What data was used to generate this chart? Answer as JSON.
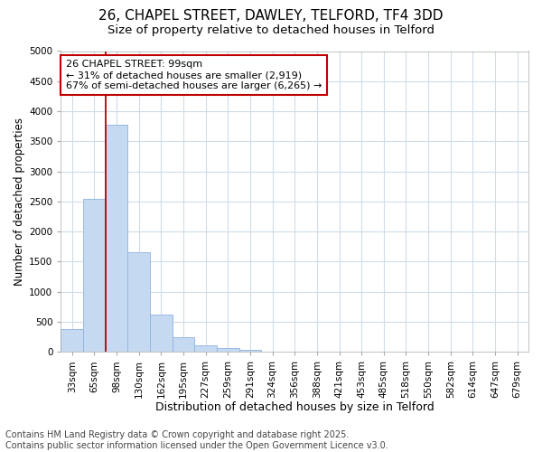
{
  "title_line1": "26, CHAPEL STREET, DAWLEY, TELFORD, TF4 3DD",
  "title_line2": "Size of property relative to detached houses in Telford",
  "xlabel": "Distribution of detached houses by size in Telford",
  "ylabel": "Number of detached properties",
  "categories": [
    "33sqm",
    "65sqm",
    "98sqm",
    "130sqm",
    "162sqm",
    "195sqm",
    "227sqm",
    "259sqm",
    "291sqm",
    "324sqm",
    "356sqm",
    "388sqm",
    "421sqm",
    "453sqm",
    "485sqm",
    "518sqm",
    "550sqm",
    "582sqm",
    "614sqm",
    "647sqm",
    "679sqm"
  ],
  "values": [
    380,
    2550,
    3780,
    1650,
    620,
    240,
    110,
    60,
    40,
    0,
    0,
    0,
    0,
    0,
    0,
    0,
    0,
    0,
    0,
    0,
    0
  ],
  "bar_color": "#c5d9f1",
  "bar_edge_color": "#8db4e2",
  "vline_color": "#c00000",
  "vline_index": 2,
  "ylim": [
    0,
    5000
  ],
  "yticks": [
    0,
    500,
    1000,
    1500,
    2000,
    2500,
    3000,
    3500,
    4000,
    4500,
    5000
  ],
  "annotation_text": "26 CHAPEL STREET: 99sqm\n← 31% of detached houses are smaller (2,919)\n67% of semi-detached houses are larger (6,265) →",
  "annotation_box_color": "#ffffff",
  "annotation_box_edge": "#c00000",
  "footer_line1": "Contains HM Land Registry data © Crown copyright and database right 2025.",
  "footer_line2": "Contains public sector information licensed under the Open Government Licence v3.0.",
  "fig_bg_color": "#ffffff",
  "plot_bg_color": "#ffffff",
  "grid_color": "#d0dce8",
  "title_fontsize": 11,
  "subtitle_fontsize": 9.5,
  "tick_fontsize": 7.5,
  "xlabel_fontsize": 9,
  "ylabel_fontsize": 8.5,
  "footer_fontsize": 7,
  "annotation_fontsize": 8
}
